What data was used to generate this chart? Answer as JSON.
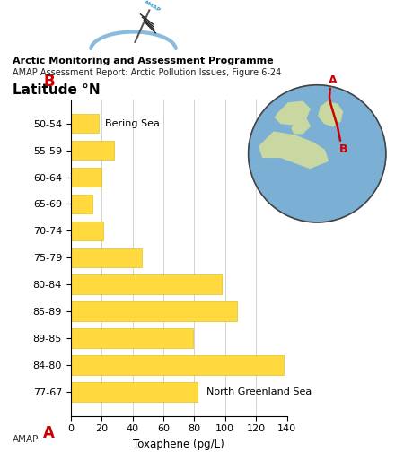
{
  "title_bold": "Arctic Monitoring and Assessment Programme",
  "title_sub": "AMAP Assessment Report: Arctic Pollution Issues, Figure 6-24",
  "ylabel": "Latitude °N",
  "xlabel": "Toxaphene (pg/L)",
  "categories": [
    "50-54",
    "55-59",
    "60-64",
    "65-69",
    "70-74",
    "75-79",
    "80-84",
    "85-89",
    "89-85",
    "84-80",
    "77-67"
  ],
  "values": [
    18,
    28,
    20,
    14,
    21,
    46,
    98,
    108,
    79,
    138,
    82
  ],
  "bar_color": "#FFD93D",
  "bar_edge_color": "#D4B800",
  "bg_color": "#FFFFFF",
  "xlim": [
    0,
    140
  ],
  "xticks": [
    0,
    20,
    40,
    60,
    80,
    100,
    120,
    140
  ],
  "label_A_color": "#CC0000",
  "label_B_color": "#CC0000",
  "bering_sea_label": "Bering Sea",
  "greenland_sea_label": "North Greenland Sea",
  "amap_footer": "AMAP",
  "grid_color": "#CCCCCC",
  "globe_bg": "#7BAFD4",
  "globe_land": "#C8D8A0",
  "globe_outline": "#444444",
  "route_color": "#CC0000",
  "logo_arc_color": "#88BBDD",
  "logo_text_color": "#3399CC"
}
